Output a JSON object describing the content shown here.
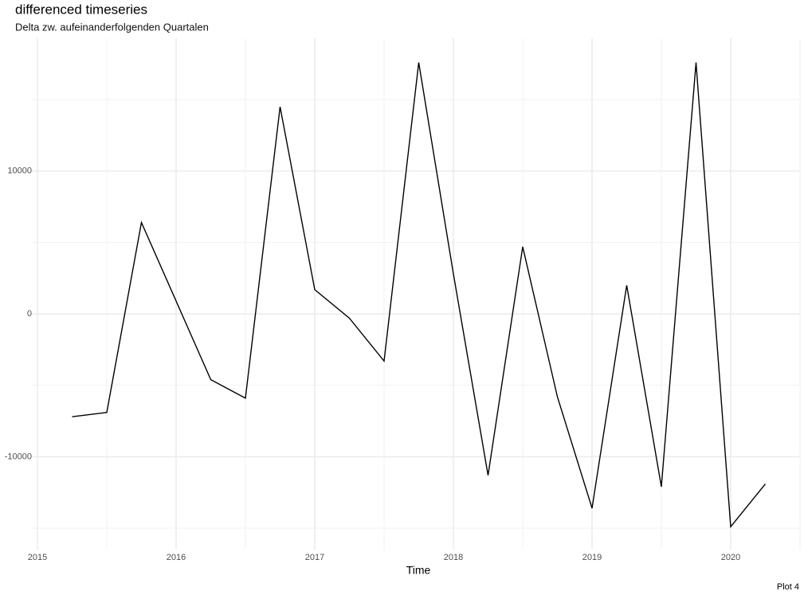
{
  "chart_data": {
    "type": "line",
    "title": "differenced timeseries",
    "subtitle": "Delta zw. aufeinanderfolgenden Quartalen",
    "xlabel": "Time",
    "caption": "Plot 4",
    "x": [
      2015.25,
      2015.5,
      2015.75,
      2016.0,
      2016.25,
      2016.5,
      2016.75,
      2017.0,
      2017.25,
      2017.5,
      2017.75,
      2018.0,
      2018.25,
      2018.5,
      2018.75,
      2019.0,
      2019.25,
      2019.5,
      2019.75,
      2020.0,
      2020.25
    ],
    "series": [
      {
        "color": "#000000",
        "values": [
          -7200,
          -6900,
          6400,
          900,
          -4600,
          -5900,
          14500,
          1700,
          -300,
          -3300,
          17600,
          2800,
          -11300,
          4700,
          -5800,
          -13600,
          2000,
          -12100,
          17600,
          -14900,
          -11900
        ]
      }
    ],
    "xlim": [
      2015,
      2020.5
    ],
    "xticks": [
      2015,
      2016,
      2017,
      2018,
      2019,
      2020
    ],
    "xminor": [
      2015.5,
      2016.5,
      2017.5,
      2018.5,
      2019.5,
      2020.5
    ],
    "ylim": [
      -16500,
      19300
    ],
    "yticks": [
      -10000,
      0,
      10000
    ],
    "yminor": [
      -15000,
      -5000,
      5000,
      15000
    ],
    "grid": true
  }
}
